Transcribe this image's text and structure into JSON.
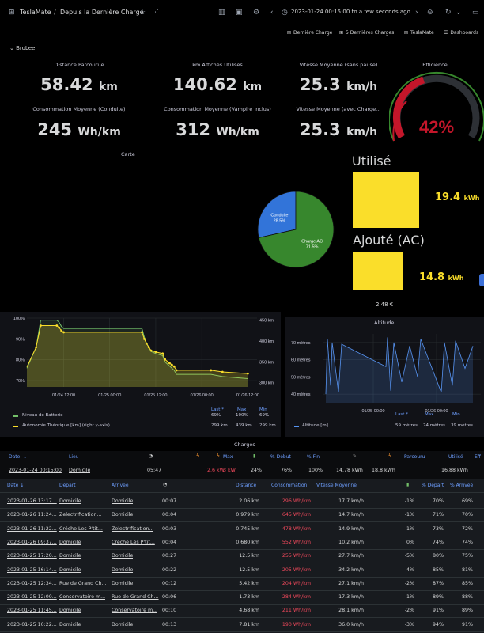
{
  "header": {
    "app_title": "TeslaMate",
    "separator": "/",
    "dashboard_title": "Depuis la Dernière Charge",
    "time_range": "2023-01-24 00:15:00 to a few seconds ago"
  },
  "links": [
    {
      "label": "Dernière Charge",
      "icon": "apps-icon"
    },
    {
      "label": "5 Dernières Charges",
      "icon": "apps-icon"
    },
    {
      "label": "TeslaMate",
      "icon": "apps-icon"
    },
    {
      "label": "Dashboards",
      "icon": "list-icon"
    }
  ],
  "row_title": "BroLee",
  "stats": [
    {
      "title": "Distance Parcourue",
      "value": "58.42",
      "unit": "km"
    },
    {
      "title": "km Affichés Utilisés",
      "value": "140.62",
      "unit": "km"
    },
    {
      "title": "Vitesse Moyenne (sans pause)",
      "value": "25.3",
      "unit": "km/h"
    },
    {
      "title": "Consommation Moyenne (Conduite)",
      "value": "245",
      "unit": "Wh/km"
    },
    {
      "title": "Consommation Moyenne (Vampire Inclus)",
      "value": "312",
      "unit": "Wh/km"
    },
    {
      "title": "Vitesse Moyenne (avec Charge...",
      "value": "25.3",
      "unit": "km/h"
    }
  ],
  "efficiency": {
    "title": "Efficience",
    "value": "42%",
    "fraction": 0.42,
    "color": "#c4162a"
  },
  "carte": {
    "title": "Carte"
  },
  "pie": {
    "slices": [
      {
        "label": "Conduite",
        "percent": "28.5%",
        "value": 28.5,
        "color": "#3274d9"
      },
      {
        "label": "Charge AC",
        "percent": "71.5%",
        "value": 71.5,
        "color": "#37872d"
      }
    ]
  },
  "utilise": {
    "title": "Utilisé",
    "value": "19.4",
    "unit": "kWh",
    "color": "#fade2a",
    "value_color": "#fade2a"
  },
  "ajoute": {
    "title": "Ajouté (AC)",
    "value": "14.8",
    "unit": "kWh",
    "color": "#fade2a",
    "value_color": "#fade2a"
  },
  "cost": "2.48 €",
  "chart_data": [
    {
      "type": "line",
      "title": "",
      "x_ticks": [
        "01/24 12:00",
        "01/25 00:00",
        "01/25 12:00",
        "01/26 00:00",
        "01/26 12:00"
      ],
      "y_left_ticks": [
        "100%",
        "90%",
        "80%",
        "70%"
      ],
      "y_right_ticks": [
        "450 km",
        "400 km",
        "350 km",
        "300 km"
      ],
      "ylim_left": [
        67,
        100
      ],
      "ylim_right": [
        290,
        455
      ],
      "series": [
        {
          "name": "Niveau de Batterie",
          "color": "#73bf69",
          "x": [
            0,
            0.04,
            0.06,
            0.13,
            0.14,
            0.15,
            0.16,
            0.5,
            0.51,
            0.52,
            0.53,
            0.54,
            0.56,
            0.59,
            0.6,
            0.62,
            0.63,
            0.64,
            0.65,
            0.8,
            0.85,
            0.96
          ],
          "y": [
            76,
            86,
            99,
            99,
            98,
            96,
            95,
            95,
            91,
            88,
            86,
            84,
            83,
            82,
            79,
            77,
            76,
            75,
            73,
            73,
            72,
            71
          ]
        },
        {
          "name": "Autonomie Théorique [km]",
          "axis": "right",
          "color": "#fade2a",
          "x": [
            0,
            0.04,
            0.06,
            0.13,
            0.14,
            0.15,
            0.16,
            0.5,
            0.51,
            0.52,
            0.53,
            0.54,
            0.56,
            0.59,
            0.6,
            0.62,
            0.63,
            0.64,
            0.65,
            0.8,
            0.85,
            0.96
          ],
          "y": [
            338,
            385,
            437,
            437,
            432,
            425,
            421,
            421,
            405,
            394,
            385,
            377,
            374,
            370,
            356,
            347,
            343,
            339,
            330,
            330,
            326,
            322
          ]
        }
      ],
      "legend": {
        "headers": [
          "Last *",
          "Max",
          "Min"
        ],
        "rows": [
          {
            "name": "Niveau de Batterie",
            "last": "69%",
            "max": "100%",
            "min": "69%"
          },
          {
            "name": "Autonomie Théorique [km] (right y-axis)",
            "last": "299 km",
            "max": "439 km",
            "min": "299 km"
          }
        ]
      }
    },
    {
      "type": "line",
      "title": "Altitude",
      "x_ticks": [
        "01/25 00:00",
        "01/26 00:00"
      ],
      "y_ticks": [
        "70 mètres",
        "60 mètres",
        "50 mètres",
        "40 mètres"
      ],
      "ylim": [
        35,
        75
      ],
      "series": [
        {
          "name": "Altitude [m]",
          "color": "#5794f2",
          "x": [
            0.02,
            0.03,
            0.05,
            0.06,
            0.1,
            0.12,
            0.4,
            0.41,
            0.43,
            0.45,
            0.5,
            0.55,
            0.6,
            0.62,
            0.75,
            0.77,
            0.82,
            0.84,
            0.9,
            0.95
          ],
          "y": [
            40,
            72,
            45,
            70,
            41,
            69,
            56,
            73,
            42,
            70,
            47,
            68,
            50,
            72,
            41,
            70,
            45,
            71,
            55,
            68
          ]
        }
      ],
      "legend": {
        "headers": [
          "Last *",
          "Max",
          "Min"
        ],
        "rows": [
          {
            "name": "Altitude [m]",
            "last": "59 mètres",
            "max": "74 mètres",
            "min": "39 mètres"
          }
        ]
      }
    }
  ],
  "charges": {
    "title": "Charges",
    "columns": [
      "Date",
      "Lieu",
      "",
      "",
      "Max",
      "",
      "% Début",
      "% Fin",
      "",
      "",
      "Parcouru",
      "Utilisé",
      "Eff"
    ],
    "row": {
      "date": "2023-01-24 00:15:00",
      "lieu": "Domicile",
      "duration": "05:47",
      "power": "2.6 kW",
      "max": "3 kW",
      "pct": "24%",
      "start": "76%",
      "end": "100%",
      "added": "14.78 kWh",
      "used": "18.8 kWh",
      "used2": "16.88 kWh"
    }
  },
  "drives": {
    "columns": [
      "Date",
      "Départ",
      "Arrivée",
      "",
      "Distance",
      "Consommation",
      "Vitesse Moyenne",
      "",
      "% Départ",
      "% Arrivée"
    ],
    "rows": [
      {
        "date": "2023-01-26 13:17...",
        "depart": "Domicile",
        "arrivee": "Domicile",
        "duree": "00:07",
        "distance": "2.06 km",
        "conso": "296 Wh/km",
        "vitesse": "17.7 km/h",
        "diff": "-1%",
        "pdepart": "70%",
        "parrivee": "69%"
      },
      {
        "date": "2023-01-26 11:24...",
        "depart": "Zelectrification...",
        "arrivee": "Domicile",
        "duree": "00:04",
        "distance": "0.979 km",
        "conso": "645 Wh/km",
        "vitesse": "14.7 km/h",
        "diff": "-1%",
        "pdepart": "71%",
        "parrivee": "70%"
      },
      {
        "date": "2023-01-26 11:22...",
        "depart": "Crêche Les P'tit...",
        "arrivee": "Zelectrification...",
        "duree": "00:03",
        "distance": "0.745 km",
        "conso": "478 Wh/km",
        "vitesse": "14.9 km/h",
        "diff": "-1%",
        "pdepart": "73%",
        "parrivee": "72%"
      },
      {
        "date": "2023-01-26 09:37...",
        "depart": "Domicile",
        "arrivee": "Crêche Les P'tit...",
        "duree": "00:04",
        "distance": "0.680 km",
        "conso": "552 Wh/km",
        "vitesse": "10.2 km/h",
        "diff": "0%",
        "pdepart": "74%",
        "parrivee": "74%"
      },
      {
        "date": "2023-01-25 17:20...",
        "depart": "Domicile",
        "arrivee": "Domicile",
        "duree": "00:27",
        "distance": "12.5 km",
        "conso": "255 Wh/km",
        "vitesse": "27.7 km/h",
        "diff": "-5%",
        "pdepart": "80%",
        "parrivee": "75%"
      },
      {
        "date": "2023-01-25 16:14...",
        "depart": "Domicile",
        "arrivee": "Domicile",
        "duree": "00:22",
        "distance": "12.5 km",
        "conso": "205 Wh/km",
        "vitesse": "34.2 km/h",
        "diff": "-4%",
        "pdepart": "85%",
        "parrivee": "81%"
      },
      {
        "date": "2023-01-25 12:34...",
        "depart": "Rue de Grand Ch...",
        "arrivee": "Domicile",
        "duree": "00:12",
        "distance": "5.42 km",
        "conso": "204 Wh/km",
        "vitesse": "27.1 km/h",
        "diff": "-2%",
        "pdepart": "87%",
        "parrivee": "85%"
      },
      {
        "date": "2023-01-25 12:00...",
        "depart": "Conservatoire m...",
        "arrivee": "Rue de Grand Ch...",
        "duree": "00:06",
        "distance": "1.73 km",
        "conso": "284 Wh/km",
        "vitesse": "17.3 km/h",
        "diff": "-1%",
        "pdepart": "89%",
        "parrivee": "88%"
      },
      {
        "date": "2023-01-25 11:45...",
        "depart": "Domicile",
        "arrivee": "Conservatoire m...",
        "duree": "00:10",
        "distance": "4.68 km",
        "conso": "211 Wh/km",
        "vitesse": "28.1 km/h",
        "diff": "-2%",
        "pdepart": "91%",
        "parrivee": "89%"
      },
      {
        "date": "2023-01-25 10:22...",
        "depart": "Domicile",
        "arrivee": "Domicile",
        "duree": "00:13",
        "distance": "7.81 km",
        "conso": "190 Wh/km",
        "vitesse": "36.0 km/h",
        "diff": "-3%",
        "pdepart": "94%",
        "parrivee": "91%"
      }
    ]
  }
}
